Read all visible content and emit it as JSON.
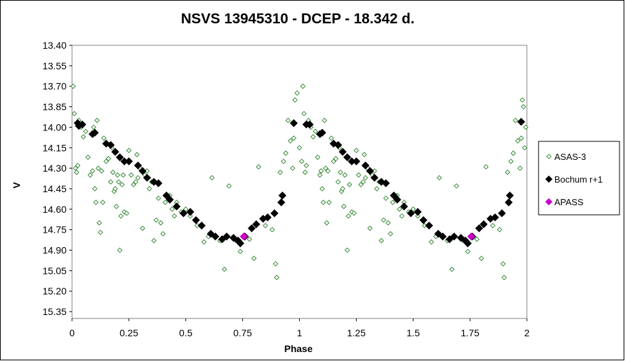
{
  "chart_data": {
    "type": "scatter",
    "title": "NSVS 13945310 - DCEP - 18.342 d.",
    "xlabel": "Phase",
    "ylabel": "V",
    "xlim": [
      0,
      2
    ],
    "ylim": [
      15.4,
      13.4
    ],
    "y_inverted": true,
    "x_ticks": [
      0,
      0.25,
      0.5,
      0.75,
      1,
      1.25,
      1.5,
      1.75,
      2
    ],
    "x_tick_labels": [
      "0",
      "0.25",
      "0.5",
      "0.75",
      "1",
      "1.25",
      "1.5",
      "1.75",
      "2"
    ],
    "y_ticks": [
      13.4,
      13.55,
      13.7,
      13.85,
      14.0,
      14.15,
      14.3,
      14.45,
      14.6,
      14.75,
      14.9,
      15.05,
      15.2,
      15.35
    ],
    "y_tick_labels": [
      "13.40",
      "13.55",
      "13.70",
      "13.85",
      "14.00",
      "14.15",
      "14.30",
      "14.45",
      "14.60",
      "14.75",
      "14.90",
      "15.05",
      "15.20",
      "15.35"
    ],
    "grid": false,
    "legend_position": "right",
    "series": [
      {
        "name": "ASAS-3",
        "marker": "open-diamond",
        "color": "#3a8a3a",
        "points": [
          [
            0.005,
            13.7
          ],
          [
            0.01,
            13.9
          ],
          [
            0.015,
            14.3
          ],
          [
            0.02,
            14.33
          ],
          [
            0.025,
            14.28
          ],
          [
            0.03,
            13.95
          ],
          [
            0.04,
            14.0
          ],
          [
            0.05,
            14.07
          ],
          [
            0.06,
            14.03
          ],
          [
            0.07,
            14.22
          ],
          [
            0.08,
            14.35
          ],
          [
            0.09,
            14.32
          ],
          [
            0.095,
            14.0
          ],
          [
            0.1,
            14.45
          ],
          [
            0.105,
            14.55
          ],
          [
            0.11,
            13.95
          ],
          [
            0.115,
            14.3
          ],
          [
            0.12,
            14.7
          ],
          [
            0.125,
            14.77
          ],
          [
            0.13,
            14.32
          ],
          [
            0.135,
            14.55
          ],
          [
            0.14,
            14.08
          ],
          [
            0.15,
            14.25
          ],
          [
            0.16,
            14.23
          ],
          [
            0.17,
            14.4
          ],
          [
            0.175,
            14.15
          ],
          [
            0.18,
            14.33
          ],
          [
            0.185,
            14.47
          ],
          [
            0.19,
            14.45
          ],
          [
            0.195,
            14.58
          ],
          [
            0.2,
            14.35
          ],
          [
            0.205,
            14.4
          ],
          [
            0.21,
            14.9
          ],
          [
            0.215,
            14.65
          ],
          [
            0.22,
            14.42
          ],
          [
            0.225,
            14.35
          ],
          [
            0.23,
            14.62
          ],
          [
            0.24,
            14.63
          ],
          [
            0.25,
            14.17
          ],
          [
            0.26,
            14.35
          ],
          [
            0.27,
            14.42
          ],
          [
            0.28,
            14.4
          ],
          [
            0.285,
            14.2
          ],
          [
            0.29,
            14.37
          ],
          [
            0.3,
            14.3
          ],
          [
            0.31,
            14.74
          ],
          [
            0.32,
            14.35
          ],
          [
            0.33,
            14.32
          ],
          [
            0.34,
            14.45
          ],
          [
            0.35,
            14.4
          ],
          [
            0.36,
            14.83
          ],
          [
            0.37,
            14.68
          ],
          [
            0.38,
            14.52
          ],
          [
            0.39,
            14.7
          ],
          [
            0.4,
            14.78
          ],
          [
            0.41,
            14.55
          ],
          [
            0.43,
            14.5
          ],
          [
            0.44,
            14.6
          ],
          [
            0.45,
            14.65
          ],
          [
            0.46,
            14.55
          ],
          [
            0.48,
            14.62
          ],
          [
            0.5,
            14.6
          ],
          [
            0.52,
            14.65
          ],
          [
            0.55,
            14.72
          ],
          [
            0.58,
            14.84
          ],
          [
            0.6,
            14.8
          ],
          [
            0.615,
            14.37
          ],
          [
            0.63,
            14.8
          ],
          [
            0.65,
            14.83
          ],
          [
            0.67,
            15.04
          ],
          [
            0.69,
            14.43
          ],
          [
            0.72,
            14.83
          ],
          [
            0.74,
            14.91
          ],
          [
            0.78,
            14.82
          ],
          [
            0.8,
            14.96
          ],
          [
            0.82,
            14.29
          ],
          [
            0.85,
            14.72
          ],
          [
            0.88,
            14.75
          ],
          [
            0.895,
            15.0
          ],
          [
            0.9,
            15.1
          ],
          [
            0.915,
            14.33
          ],
          [
            0.93,
            14.25
          ],
          [
            0.94,
            14.19
          ],
          [
            0.95,
            13.95
          ],
          [
            0.96,
            14.1
          ],
          [
            0.97,
            14.3
          ],
          [
            0.975,
            14.08
          ],
          [
            0.98,
            13.8
          ],
          [
            0.99,
            13.75
          ],
          [
            1.0,
            14.15
          ],
          [
            1.01,
            14.25
          ],
          [
            1.015,
            13.7
          ],
          [
            1.02,
            13.9
          ],
          [
            1.025,
            14.33
          ],
          [
            1.03,
            14.28
          ],
          [
            1.04,
            13.95
          ],
          [
            1.05,
            14.0
          ],
          [
            1.06,
            14.07
          ],
          [
            1.07,
            14.03
          ],
          [
            1.08,
            14.22
          ],
          [
            1.09,
            14.35
          ],
          [
            1.095,
            14.32
          ],
          [
            1.1,
            14.45
          ],
          [
            1.105,
            14.55
          ],
          [
            1.11,
            13.95
          ],
          [
            1.115,
            14.3
          ],
          [
            1.12,
            14.7
          ],
          [
            1.125,
            14.32
          ],
          [
            1.13,
            14.55
          ],
          [
            1.14,
            14.08
          ],
          [
            1.15,
            14.25
          ],
          [
            1.16,
            14.23
          ],
          [
            1.17,
            14.4
          ],
          [
            1.175,
            14.15
          ],
          [
            1.18,
            14.33
          ],
          [
            1.185,
            14.47
          ],
          [
            1.19,
            14.45
          ],
          [
            1.195,
            14.58
          ],
          [
            1.2,
            14.35
          ],
          [
            1.21,
            14.9
          ],
          [
            1.215,
            14.65
          ],
          [
            1.22,
            14.42
          ],
          [
            1.23,
            14.62
          ],
          [
            1.24,
            14.63
          ],
          [
            1.25,
            14.17
          ],
          [
            1.26,
            14.35
          ],
          [
            1.27,
            14.42
          ],
          [
            1.28,
            14.4
          ],
          [
            1.285,
            14.2
          ],
          [
            1.29,
            14.37
          ],
          [
            1.3,
            14.3
          ],
          [
            1.31,
            14.74
          ],
          [
            1.32,
            14.35
          ],
          [
            1.33,
            14.32
          ],
          [
            1.34,
            14.45
          ],
          [
            1.35,
            14.4
          ],
          [
            1.36,
            14.83
          ],
          [
            1.37,
            14.68
          ],
          [
            1.38,
            14.52
          ],
          [
            1.39,
            14.7
          ],
          [
            1.4,
            14.78
          ],
          [
            1.41,
            14.55
          ],
          [
            1.43,
            14.5
          ],
          [
            1.44,
            14.6
          ],
          [
            1.45,
            14.65
          ],
          [
            1.46,
            14.55
          ],
          [
            1.48,
            14.62
          ],
          [
            1.5,
            14.6
          ],
          [
            1.52,
            14.65
          ],
          [
            1.55,
            14.72
          ],
          [
            1.58,
            14.84
          ],
          [
            1.6,
            14.8
          ],
          [
            1.615,
            14.37
          ],
          [
            1.63,
            14.8
          ],
          [
            1.65,
            14.83
          ],
          [
            1.67,
            15.04
          ],
          [
            1.69,
            14.43
          ],
          [
            1.72,
            14.83
          ],
          [
            1.74,
            14.91
          ],
          [
            1.78,
            14.82
          ],
          [
            1.8,
            14.96
          ],
          [
            1.82,
            14.29
          ],
          [
            1.85,
            14.72
          ],
          [
            1.88,
            14.75
          ],
          [
            1.895,
            15.0
          ],
          [
            1.9,
            15.1
          ],
          [
            1.915,
            14.33
          ],
          [
            1.93,
            14.25
          ],
          [
            1.94,
            14.19
          ],
          [
            1.95,
            13.95
          ],
          [
            1.96,
            14.1
          ],
          [
            1.97,
            14.3
          ],
          [
            1.975,
            14.08
          ],
          [
            1.98,
            13.8
          ],
          [
            1.985,
            13.85
          ],
          [
            1.99,
            14.15
          ],
          [
            1.995,
            14.0
          ]
        ]
      },
      {
        "name": "Bochum r+1",
        "marker": "filled-diamond",
        "color": "#000000",
        "points": [
          [
            0.025,
            13.97
          ],
          [
            0.03,
            13.99
          ],
          [
            0.045,
            13.98
          ],
          [
            0.09,
            14.05
          ],
          [
            0.1,
            14.04
          ],
          [
            0.15,
            14.12
          ],
          [
            0.17,
            14.13
          ],
          [
            0.19,
            14.18
          ],
          [
            0.21,
            14.22
          ],
          [
            0.23,
            14.25
          ],
          [
            0.25,
            14.25
          ],
          [
            0.29,
            14.28
          ],
          [
            0.31,
            14.32
          ],
          [
            0.33,
            14.37
          ],
          [
            0.36,
            14.4
          ],
          [
            0.38,
            14.41
          ],
          [
            0.415,
            14.5
          ],
          [
            0.43,
            14.53
          ],
          [
            0.46,
            14.58
          ],
          [
            0.49,
            14.63
          ],
          [
            0.52,
            14.62
          ],
          [
            0.545,
            14.68
          ],
          [
            0.57,
            14.72
          ],
          [
            0.61,
            14.78
          ],
          [
            0.63,
            14.8
          ],
          [
            0.66,
            14.82
          ],
          [
            0.68,
            14.8
          ],
          [
            0.71,
            14.81
          ],
          [
            0.73,
            14.83
          ],
          [
            0.74,
            14.85
          ],
          [
            0.76,
            14.8
          ],
          [
            0.79,
            14.74
          ],
          [
            0.81,
            14.71
          ],
          [
            0.84,
            14.67
          ],
          [
            0.86,
            14.66
          ],
          [
            0.89,
            14.63
          ],
          [
            0.92,
            14.55
          ],
          [
            0.925,
            14.5
          ],
          [
            0.975,
            13.97
          ],
          [
            1.03,
            13.98
          ],
          [
            1.045,
            13.98
          ],
          [
            1.09,
            14.05
          ],
          [
            1.1,
            14.04
          ],
          [
            1.15,
            14.12
          ],
          [
            1.17,
            14.13
          ],
          [
            1.19,
            14.18
          ],
          [
            1.21,
            14.22
          ],
          [
            1.23,
            14.25
          ],
          [
            1.25,
            14.25
          ],
          [
            1.29,
            14.28
          ],
          [
            1.31,
            14.32
          ],
          [
            1.33,
            14.37
          ],
          [
            1.36,
            14.4
          ],
          [
            1.38,
            14.41
          ],
          [
            1.415,
            14.5
          ],
          [
            1.43,
            14.53
          ],
          [
            1.46,
            14.58
          ],
          [
            1.49,
            14.63
          ],
          [
            1.52,
            14.62
          ],
          [
            1.545,
            14.68
          ],
          [
            1.57,
            14.72
          ],
          [
            1.61,
            14.78
          ],
          [
            1.63,
            14.8
          ],
          [
            1.66,
            14.82
          ],
          [
            1.68,
            14.8
          ],
          [
            1.71,
            14.81
          ],
          [
            1.73,
            14.83
          ],
          [
            1.74,
            14.85
          ],
          [
            1.76,
            14.8
          ],
          [
            1.79,
            14.74
          ],
          [
            1.81,
            14.71
          ],
          [
            1.84,
            14.67
          ],
          [
            1.86,
            14.66
          ],
          [
            1.89,
            14.63
          ],
          [
            1.92,
            14.55
          ],
          [
            1.925,
            14.5
          ],
          [
            1.975,
            13.96
          ]
        ]
      },
      {
        "name": "APASS",
        "marker": "filled-diamond",
        "color": "#cc00cc",
        "points": [
          [
            0.755,
            14.8
          ],
          [
            1.755,
            14.8
          ]
        ]
      }
    ]
  }
}
